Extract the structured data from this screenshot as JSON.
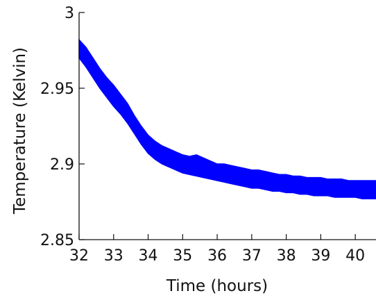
{
  "chart_data": {
    "type": "area",
    "title": "",
    "xlabel": "Time (hours)",
    "ylabel": "Temperature (Kelvin)",
    "xlim": [
      32,
      40.6
    ],
    "ylim": [
      2.85,
      3.0
    ],
    "xticks": [
      {
        "value": 32,
        "label": "32"
      },
      {
        "value": 33,
        "label": "33"
      },
      {
        "value": 34,
        "label": "34"
      },
      {
        "value": 35,
        "label": "35"
      },
      {
        "value": 36,
        "label": "36"
      },
      {
        "value": 37,
        "label": "37"
      },
      {
        "value": 38,
        "label": "38"
      },
      {
        "value": 39,
        "label": "39"
      },
      {
        "value": 40,
        "label": "40"
      }
    ],
    "yticks": [
      {
        "value": 2.85,
        "label": "2.85"
      },
      {
        "value": 2.9,
        "label": "2.9"
      },
      {
        "value": 2.95,
        "label": "2.95"
      },
      {
        "value": 3.0,
        "label": "3"
      }
    ],
    "grid": false,
    "legend": "none",
    "series": [
      {
        "color": "#0000ff",
        "x": [
          32.0,
          32.2,
          32.4,
          32.6,
          32.8,
          33.0,
          33.2,
          33.4,
          33.6,
          33.8,
          34.0,
          34.2,
          34.4,
          34.6,
          34.8,
          35.0,
          35.2,
          35.4,
          35.6,
          35.8,
          36.0,
          36.2,
          36.4,
          36.6,
          36.8,
          37.0,
          37.2,
          37.4,
          37.6,
          37.8,
          38.0,
          38.2,
          38.4,
          38.6,
          38.8,
          39.0,
          39.2,
          39.4,
          39.6,
          39.8,
          40.0,
          40.2,
          40.4,
          40.6
        ],
        "upper": [
          2.982,
          2.977,
          2.97,
          2.963,
          2.957,
          2.952,
          2.946,
          2.94,
          2.932,
          2.925,
          2.919,
          2.915,
          2.912,
          2.91,
          2.908,
          2.906,
          2.905,
          2.906,
          2.904,
          2.902,
          2.9,
          2.9,
          2.899,
          2.898,
          2.897,
          2.896,
          2.896,
          2.895,
          2.894,
          2.893,
          2.893,
          2.892,
          2.892,
          2.891,
          2.891,
          2.891,
          2.89,
          2.89,
          2.89,
          2.889,
          2.889,
          2.889,
          2.889,
          2.889
        ],
        "lower": [
          2.97,
          2.964,
          2.957,
          2.95,
          2.944,
          2.938,
          2.933,
          2.927,
          2.92,
          2.913,
          2.907,
          2.903,
          2.9,
          2.898,
          2.896,
          2.894,
          2.893,
          2.892,
          2.891,
          2.89,
          2.889,
          2.888,
          2.887,
          2.886,
          2.885,
          2.884,
          2.884,
          2.883,
          2.882,
          2.882,
          2.881,
          2.881,
          2.88,
          2.88,
          2.879,
          2.879,
          2.879,
          2.878,
          2.878,
          2.878,
          2.878,
          2.877,
          2.877,
          2.877
        ]
      }
    ]
  }
}
